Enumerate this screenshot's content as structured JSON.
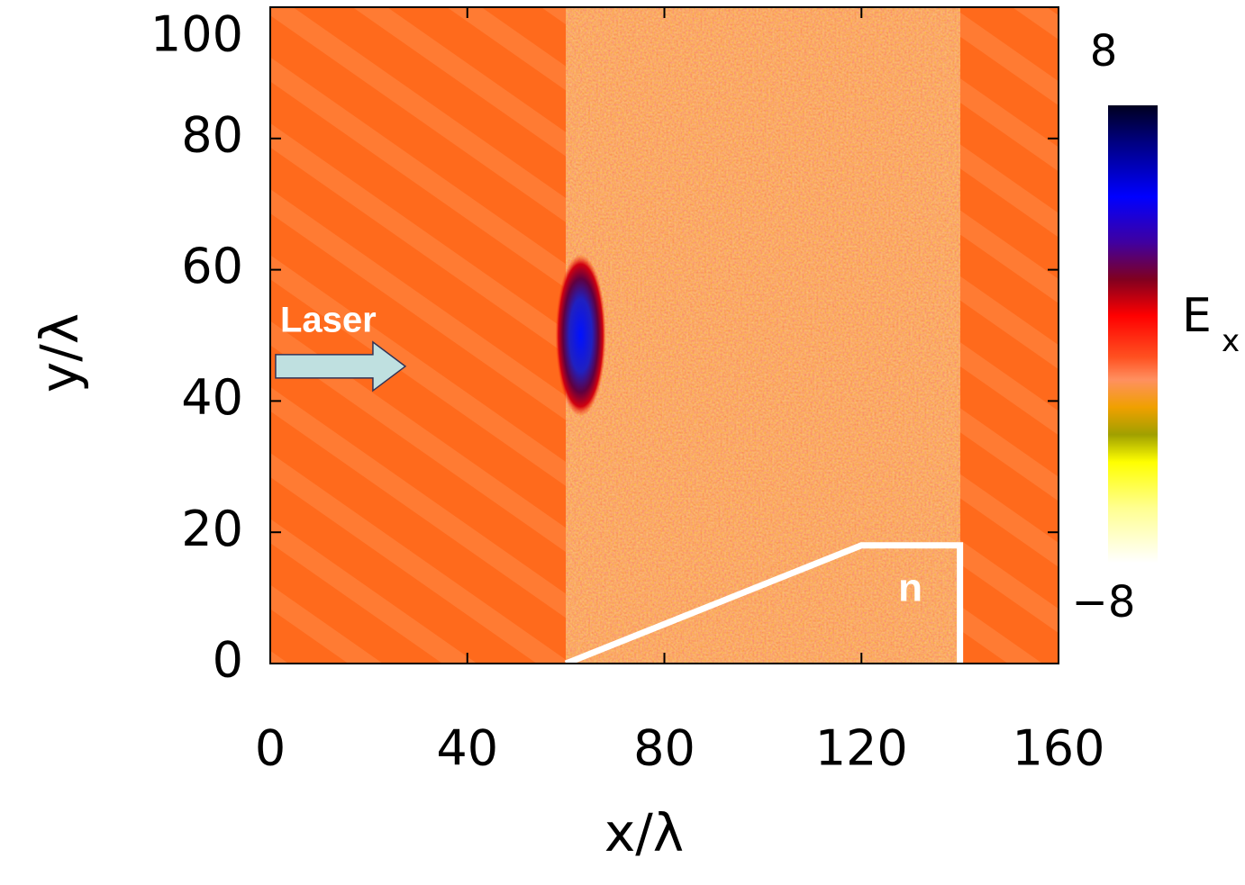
{
  "chart_data": {
    "type": "field",
    "xlabel": "x/λ",
    "ylabel": "y/λ",
    "xlim": [
      0,
      160
    ],
    "xticks": [
      0,
      40,
      80,
      120,
      160
    ],
    "ylim": [
      0,
      100
    ],
    "yticks": [
      0,
      20,
      40,
      60,
      80,
      100
    ],
    "colorbar_label": "E",
    "colorbar_label_sub": "x",
    "clim": [
      -8,
      8
    ],
    "cticks": [
      8,
      {
        "value": -8,
        "label": "−8"
      }
    ],
    "pulse": {
      "x": 63,
      "y": 50,
      "value": 6
    },
    "density_profile": {
      "name": "n",
      "x": [
        60,
        120,
        140,
        140
      ],
      "y": [
        0,
        18,
        18,
        0
      ]
    },
    "annotations": [
      {
        "text": "Laser",
        "x": 2,
        "y": 52
      }
    ]
  }
}
